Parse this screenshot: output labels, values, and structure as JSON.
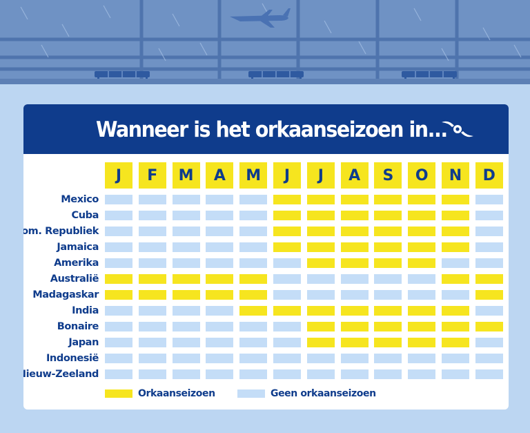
{
  "colors": {
    "season": "#f6e51f",
    "no_season": "#c4ddf7",
    "header_bg": "#0f3c8c",
    "text": "#0f3c8c",
    "background": "#bcd6f2"
  },
  "icons": {
    "hurricane": "hurricane-icon",
    "airplane": "airplane-icon"
  },
  "chart_data": {
    "type": "heatmap",
    "title": "Wanneer is het orkaanseizoen in...",
    "months": [
      "J",
      "F",
      "M",
      "A",
      "M",
      "J",
      "J",
      "A",
      "S",
      "O",
      "N",
      "D"
    ],
    "countries": [
      "Mexico",
      "Cuba",
      "Dom. Republiek",
      "Jamaica",
      "Amerika",
      "Australië",
      "Madagaskar",
      "India",
      "Bonaire",
      "Japan",
      "Indonesië",
      "Nieuw-Zeeland"
    ],
    "matrix": [
      [
        0,
        0,
        0,
        0,
        0,
        1,
        1,
        1,
        1,
        1,
        1,
        0
      ],
      [
        0,
        0,
        0,
        0,
        0,
        1,
        1,
        1,
        1,
        1,
        1,
        0
      ],
      [
        0,
        0,
        0,
        0,
        0,
        1,
        1,
        1,
        1,
        1,
        1,
        0
      ],
      [
        0,
        0,
        0,
        0,
        0,
        1,
        1,
        1,
        1,
        1,
        1,
        0
      ],
      [
        0,
        0,
        0,
        0,
        0,
        0,
        1,
        1,
        1,
        1,
        0,
        0
      ],
      [
        1,
        1,
        1,
        1,
        1,
        0,
        0,
        0,
        0,
        0,
        1,
        1
      ],
      [
        1,
        1,
        1,
        1,
        1,
        0,
        0,
        0,
        0,
        0,
        0,
        1
      ],
      [
        0,
        0,
        0,
        0,
        1,
        1,
        1,
        1,
        1,
        1,
        1,
        0
      ],
      [
        0,
        0,
        0,
        0,
        0,
        0,
        1,
        1,
        1,
        1,
        1,
        1
      ],
      [
        0,
        0,
        0,
        0,
        0,
        0,
        1,
        1,
        1,
        1,
        1,
        0
      ],
      [
        0,
        0,
        0,
        0,
        0,
        0,
        0,
        0,
        0,
        0,
        0,
        0
      ],
      [
        0,
        0,
        0,
        0,
        0,
        0,
        0,
        0,
        0,
        0,
        0,
        0
      ]
    ],
    "legend": [
      {
        "label": "Orkaanseizoen",
        "value": 1
      },
      {
        "label": "Geen orkaanseizoen",
        "value": 0
      }
    ]
  }
}
